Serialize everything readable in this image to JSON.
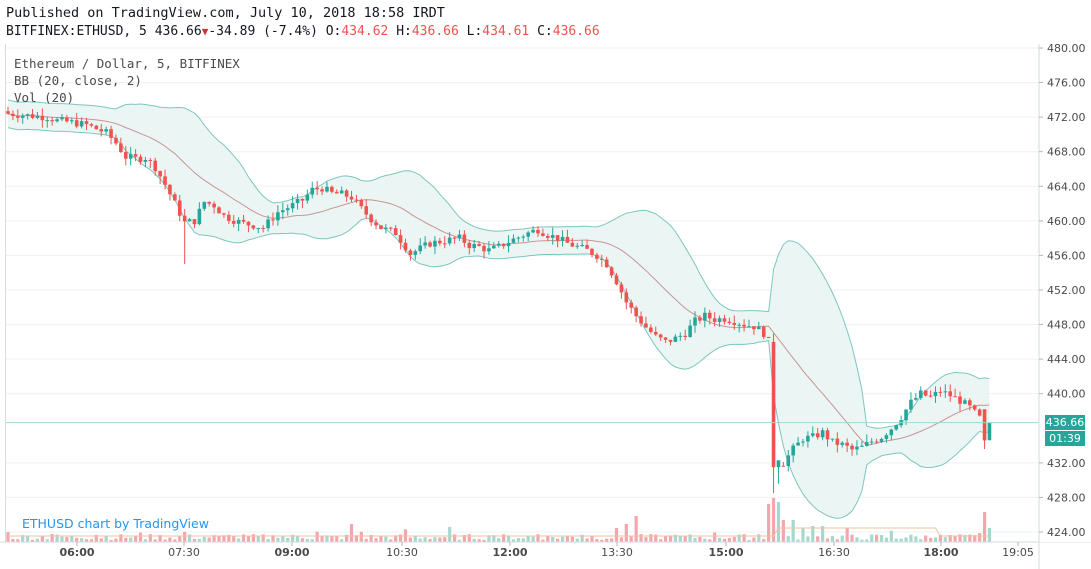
{
  "header": {
    "published": "Published on TradingView.com, July 10, 2018 18:58 IRDT",
    "symbol": "BITFINEX:ETHUSD, 5",
    "last": "436.66",
    "change": "-34.89",
    "change_pct": "(-7.4%)",
    "o_label": "O:",
    "o": "434.62",
    "h_label": "H:",
    "h": "436.66",
    "l_label": "L:",
    "l": "434.61",
    "c_label": "C:",
    "c": "436.66"
  },
  "legend": {
    "line1": "Ethereum / Dollar, 5, BITFINEX",
    "line2": "BB (20, close, 2)",
    "line3": "Vol (20)"
  },
  "watermark": "ETHUSD chart by TradingView",
  "price_tag": {
    "price": "436.66",
    "countdown": "01:39"
  },
  "colors": {
    "up": "#26a69a",
    "down": "#ef5350",
    "bb_fill": "#e6f4f1",
    "bb_line": "#7ec6bd",
    "basis": "#c99494"
  },
  "chart_data": {
    "type": "candlestick",
    "title": "Ethereum / Dollar, 5, BITFINEX",
    "y_ticks": [
      "480.00",
      "476.00",
      "472.00",
      "468.00",
      "464.00",
      "460.00",
      "456.00",
      "452.00",
      "448.00",
      "444.00",
      "440.00",
      "432.00",
      "428.00",
      "424.00"
    ],
    "x_ticks": [
      {
        "label": "06:00",
        "bold": true
      },
      {
        "label": "07:30",
        "bold": false
      },
      {
        "label": "09:00",
        "bold": true
      },
      {
        "label": "10:30",
        "bold": false
      },
      {
        "label": "12:00",
        "bold": true
      },
      {
        "label": "13:30",
        "bold": false
      },
      {
        "label": "15:00",
        "bold": true
      },
      {
        "label": "16:30",
        "bold": false
      },
      {
        "label": "18:00",
        "bold": true
      },
      {
        "label": "19:05",
        "bold": false
      }
    ],
    "ylim": [
      422,
      481
    ],
    "current_price": 436.66,
    "price_path": [
      [
        0,
        472.4
      ],
      [
        4,
        472.2
      ],
      [
        8,
        472.0
      ],
      [
        10,
        471.6
      ],
      [
        13,
        471.4
      ],
      [
        16,
        471.1
      ],
      [
        20,
        470.2
      ],
      [
        22,
        469.0
      ],
      [
        24,
        467.4
      ],
      [
        26,
        467.2
      ],
      [
        28,
        467.3
      ],
      [
        30,
        466.2
      ],
      [
        32,
        464.2
      ],
      [
        34,
        462.0
      ],
      [
        36,
        459.8
      ],
      [
        38,
        460.0
      ],
      [
        40,
        462.2
      ],
      [
        42,
        461.8
      ],
      [
        44,
        460.6
      ],
      [
        46,
        460.1
      ],
      [
        48,
        459.7
      ],
      [
        50,
        459.5
      ],
      [
        52,
        459.2
      ],
      [
        55,
        461.0
      ],
      [
        58,
        461.8
      ],
      [
        60,
        462.4
      ],
      [
        62,
        463.6
      ],
      [
        64,
        463.8
      ],
      [
        66,
        463.2
      ],
      [
        68,
        463.1
      ],
      [
        70,
        462.7
      ],
      [
        72,
        461.4
      ],
      [
        74,
        460.2
      ],
      [
        76,
        459.2
      ],
      [
        79,
        458.6
      ],
      [
        82,
        456.2
      ],
      [
        84,
        456.8
      ],
      [
        86,
        457.4
      ],
      [
        88,
        457.6
      ],
      [
        90,
        457.8
      ],
      [
        92,
        458.0
      ],
      [
        94,
        457.2
      ],
      [
        96,
        457.0
      ],
      [
        98,
        456.6
      ],
      [
        100,
        457.0
      ],
      [
        102,
        457.6
      ],
      [
        104,
        458.1
      ],
      [
        106,
        458.6
      ],
      [
        108,
        459.0
      ],
      [
        110,
        458.4
      ],
      [
        112,
        458.0
      ],
      [
        114,
        457.4
      ],
      [
        116,
        457.0
      ],
      [
        118,
        456.6
      ],
      [
        120,
        456.0
      ],
      [
        122,
        455.0
      ],
      [
        124,
        453.0
      ],
      [
        126,
        450.6
      ],
      [
        128,
        449.0
      ],
      [
        130,
        447.7
      ],
      [
        132,
        446.6
      ],
      [
        134,
        446.0
      ],
      [
        136,
        446.4
      ],
      [
        138,
        447.0
      ],
      [
        140,
        448.4
      ],
      [
        142,
        449.0
      ],
      [
        144,
        448.6
      ],
      [
        146,
        448.7
      ],
      [
        148,
        448.4
      ],
      [
        150,
        448.0
      ],
      [
        152,
        447.8
      ],
      [
        154,
        447.0
      ],
      [
        155,
        446.0
      ],
      [
        156,
        432.0
      ],
      [
        158,
        432.0
      ],
      [
        160,
        433.6
      ],
      [
        162,
        434.8
      ],
      [
        164,
        435.0
      ],
      [
        166,
        435.5
      ],
      [
        168,
        434.4
      ],
      [
        170,
        434.1
      ],
      [
        172,
        433.5
      ],
      [
        174,
        433.8
      ],
      [
        176,
        434.5
      ],
      [
        178,
        435.0
      ],
      [
        180,
        436.0
      ],
      [
        182,
        437.3
      ],
      [
        184,
        439.0
      ],
      [
        186,
        440.0
      ],
      [
        188,
        439.6
      ],
      [
        190,
        440.3
      ],
      [
        192,
        439.8
      ],
      [
        194,
        439.2
      ],
      [
        196,
        438.4
      ],
      [
        198,
        437.2
      ],
      [
        199,
        434.5
      ],
      [
        200,
        436.66
      ]
    ],
    "candle_count": 201,
    "xlim_index": [
      0,
      205
    ],
    "series": [
      {
        "name": "BB (20, close, 2)"
      },
      {
        "name": "Vol (20)"
      }
    ]
  }
}
